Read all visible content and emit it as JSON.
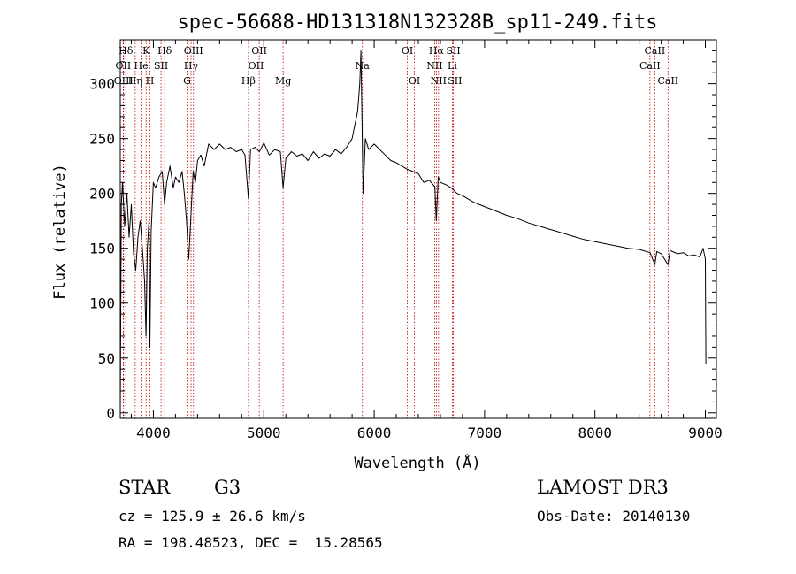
{
  "chart_data": {
    "type": "line",
    "title": "spec-56688-HD131318N132328B_sp11-249.fits",
    "xlabel": "Wavelength (Å)",
    "ylabel": "Flux (relative)",
    "xlim": [
      3700,
      9100
    ],
    "ylim": [
      -5,
      340
    ],
    "xticks": [
      {
        "v": 4000,
        "label": "4000"
      },
      {
        "v": 5000,
        "label": "5000"
      },
      {
        "v": 6000,
        "label": "6000"
      },
      {
        "v": 7000,
        "label": "7000"
      },
      {
        "v": 8000,
        "label": "8000"
      },
      {
        "v": 9000,
        "label": "9000"
      }
    ],
    "yticks": [
      {
        "v": 0,
        "label": "0"
      },
      {
        "v": 50,
        "label": "50"
      },
      {
        "v": 100,
        "label": "100"
      },
      {
        "v": 150,
        "label": "150"
      },
      {
        "v": 200,
        "label": "200"
      },
      {
        "v": 250,
        "label": "250"
      },
      {
        "v": 300,
        "label": "300"
      }
    ],
    "series": [
      {
        "name": "spectrum",
        "x": [
          3700,
          3710,
          3720,
          3740,
          3760,
          3780,
          3800,
          3820,
          3840,
          3860,
          3880,
          3900,
          3920,
          3933,
          3945,
          3960,
          3968,
          3980,
          4000,
          4020,
          4050,
          4080,
          4101,
          4120,
          4150,
          4180,
          4200,
          4230,
          4260,
          4280,
          4300,
          4320,
          4340,
          4360,
          4380,
          4400,
          4430,
          4460,
          4500,
          4550,
          4600,
          4650,
          4700,
          4750,
          4800,
          4830,
          4861,
          4880,
          4920,
          4960,
          5000,
          5050,
          5100,
          5150,
          5175,
          5200,
          5250,
          5300,
          5350,
          5400,
          5450,
          5500,
          5550,
          5600,
          5650,
          5700,
          5750,
          5800,
          5820,
          5850,
          5870,
          5880,
          5890,
          5895,
          5900,
          5920,
          5950,
          6000,
          6050,
          6100,
          6150,
          6200,
          6250,
          6300,
          6350,
          6400,
          6450,
          6500,
          6550,
          6563,
          6580,
          6600,
          6650,
          6700,
          6750,
          6800,
          6900,
          7000,
          7100,
          7200,
          7300,
          7400,
          7500,
          7600,
          7700,
          7800,
          7900,
          8000,
          8100,
          8200,
          8300,
          8400,
          8500,
          8542,
          8560,
          8600,
          8662,
          8680,
          8700,
          8750,
          8800,
          8850,
          8900,
          8950,
          8980,
          9000,
          9005
        ],
        "y": [
          0,
          190,
          210,
          170,
          200,
          160,
          190,
          145,
          130,
          160,
          175,
          150,
          120,
          70,
          150,
          175,
          60,
          165,
          210,
          205,
          215,
          220,
          190,
          210,
          225,
          205,
          215,
          210,
          220,
          200,
          175,
          140,
          180,
          220,
          210,
          230,
          235,
          225,
          245,
          240,
          245,
          240,
          242,
          238,
          240,
          235,
          195,
          240,
          242,
          238,
          246,
          235,
          240,
          238,
          205,
          232,
          238,
          234,
          236,
          230,
          238,
          232,
          236,
          234,
          240,
          236,
          242,
          250,
          260,
          275,
          300,
          330,
          265,
          230,
          200,
          250,
          240,
          245,
          240,
          235,
          230,
          228,
          225,
          222,
          220,
          218,
          210,
          212,
          206,
          175,
          215,
          210,
          208,
          205,
          200,
          198,
          192,
          188,
          184,
          180,
          177,
          173,
          170,
          167,
          164,
          161,
          158,
          156,
          154,
          152,
          150,
          149,
          146,
          135,
          147,
          145,
          135,
          148,
          147,
          145,
          146,
          143,
          144,
          142,
          150,
          140,
          45
        ]
      }
    ],
    "line_markers": [
      {
        "name": "Hδ",
        "x": 3750,
        "row": 0
      },
      {
        "name": "OII",
        "x": 3727,
        "row": 1
      },
      {
        "name": "OIII",
        "x": 3730,
        "row": 2
      },
      {
        "name": "K",
        "x": 3934,
        "row": 0
      },
      {
        "name": "He",
        "x": 3889,
        "row": 1
      },
      {
        "name": "Hη",
        "x": 3835,
        "row": 2
      },
      {
        "name": "SII",
        "x": 4069,
        "row": 1
      },
      {
        "name": "H",
        "x": 3969,
        "row": 2
      },
      {
        "name": "Hδ",
        "x": 4102,
        "row": 0
      },
      {
        "name": "OIII",
        "x": 4363,
        "row": 0
      },
      {
        "name": "Hγ",
        "x": 4341,
        "row": 1
      },
      {
        "name": "G",
        "x": 4305,
        "row": 2
      },
      {
        "name": "Hβ",
        "x": 4861,
        "row": 2
      },
      {
        "name": "OII",
        "x": 4959,
        "row": 0
      },
      {
        "name": "OII",
        "x": 4930,
        "row": 1
      },
      {
        "name": "Mg",
        "x": 5175,
        "row": 2
      },
      {
        "name": "Na",
        "x": 5893,
        "row": 1
      },
      {
        "name": "OI",
        "x": 6300,
        "row": 0
      },
      {
        "name": "OI",
        "x": 6364,
        "row": 2
      },
      {
        "name": "Hα",
        "x": 6563,
        "row": 0
      },
      {
        "name": "NII",
        "x": 6548,
        "row": 1
      },
      {
        "name": "NII",
        "x": 6583,
        "row": 2
      },
      {
        "name": "SII",
        "x": 6717,
        "row": 0
      },
      {
        "name": "Li",
        "x": 6708,
        "row": 1
      },
      {
        "name": "SII",
        "x": 6731,
        "row": 2
      },
      {
        "name": "CaII",
        "x": 8542,
        "row": 0
      },
      {
        "name": "CaII",
        "x": 8498,
        "row": 1
      },
      {
        "name": "CaII",
        "x": 8662,
        "row": 2
      }
    ]
  },
  "info": {
    "object_class": "STAR",
    "subclass": "G3",
    "survey": "LAMOST DR3",
    "redshift": "cz = 125.9 ± 26.6 km/s",
    "obs_date": "Obs-Date: 20140130",
    "coords": "RA = 198.48523, DEC =  15.28565"
  },
  "colors": {
    "marker": "#c00000",
    "axis": "#000000"
  }
}
